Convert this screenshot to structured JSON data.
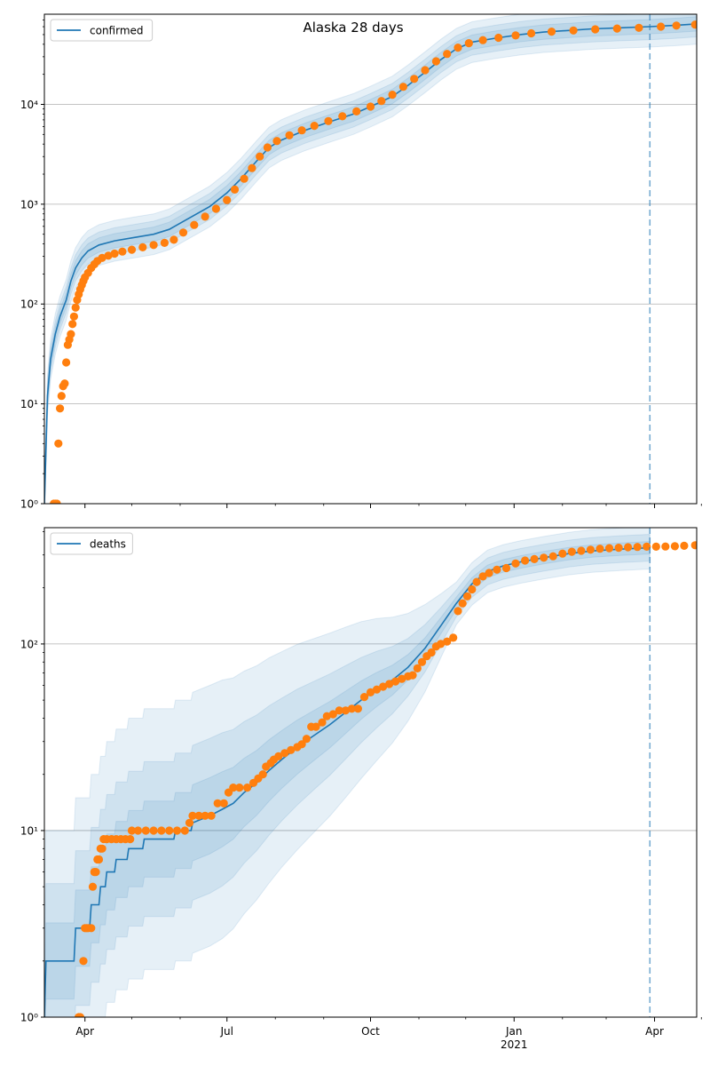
{
  "figure": {
    "title": "Alaska 28 days"
  },
  "colors": {
    "model": "#1f77b4",
    "observed": "#ff7f0e",
    "band": "#1f77b4",
    "grid": "#b0b0b0"
  },
  "x_axis": {
    "ticks": [
      {
        "date": "2020-04-01",
        "label": "Apr",
        "sublabel": ""
      },
      {
        "date": "2020-07-01",
        "label": "Jul",
        "sublabel": ""
      },
      {
        "date": "2020-10-01",
        "label": "Oct",
        "sublabel": ""
      },
      {
        "date": "2021-01-01",
        "label": "Jan",
        "sublabel": "2021"
      },
      {
        "date": "2021-04-01",
        "label": "Apr",
        "sublabel": ""
      }
    ],
    "minor_ticks": [
      "2020-05-01",
      "2020-06-01",
      "2020-08-01",
      "2020-09-01",
      "2020-11-01",
      "2020-12-01",
      "2021-02-01",
      "2021-03-01",
      "2021-05-01"
    ]
  },
  "chart_data": [
    {
      "type": "line",
      "legend": "confirmed",
      "legend_position": "upper-left",
      "yscale": "log",
      "ylim": [
        1,
        80000
      ],
      "y_ticks": [
        {
          "value": 1,
          "label": "10⁰"
        },
        {
          "value": 10,
          "label": "10¹"
        },
        {
          "value": 100,
          "label": "10²"
        },
        {
          "value": 1000,
          "label": "10³"
        },
        {
          "value": 10000,
          "label": "10⁴"
        }
      ],
      "grid": "horizontal",
      "xlim": [
        "2020-03-06",
        "2021-04-28"
      ],
      "forecast_start": "2021-03-29",
      "model": [
        [
          "2020-03-06",
          1
        ],
        [
          "2020-03-08",
          12
        ],
        [
          "2020-03-10",
          28
        ],
        [
          "2020-03-13",
          50
        ],
        [
          "2020-03-16",
          75
        ],
        [
          "2020-03-20",
          110
        ],
        [
          "2020-03-23",
          170
        ],
        [
          "2020-03-26",
          230
        ],
        [
          "2020-03-30",
          290
        ],
        [
          "2020-04-03",
          340
        ],
        [
          "2020-04-10",
          390
        ],
        [
          "2020-04-20",
          430
        ],
        [
          "2020-05-01",
          460
        ],
        [
          "2020-05-15",
          500
        ],
        [
          "2020-05-25",
          560
        ],
        [
          "2020-06-05",
          700
        ],
        [
          "2020-06-20",
          950
        ],
        [
          "2020-07-01",
          1300
        ],
        [
          "2020-07-10",
          1800
        ],
        [
          "2020-07-20",
          2700
        ],
        [
          "2020-07-28",
          3700
        ],
        [
          "2020-08-05",
          4400
        ],
        [
          "2020-08-20",
          5500
        ],
        [
          "2020-09-05",
          6700
        ],
        [
          "2020-09-20",
          8000
        ],
        [
          "2020-10-01",
          9500
        ],
        [
          "2020-10-15",
          12000
        ],
        [
          "2020-10-25",
          15500
        ],
        [
          "2020-11-05",
          21000
        ],
        [
          "2020-11-15",
          28000
        ],
        [
          "2020-11-25",
          36000
        ],
        [
          "2020-12-05",
          42000
        ],
        [
          "2020-12-20",
          46000
        ],
        [
          "2021-01-05",
          50000
        ],
        [
          "2021-01-20",
          53000
        ],
        [
          "2021-02-05",
          55000
        ],
        [
          "2021-02-20",
          57000
        ],
        [
          "2021-03-10",
          58500
        ],
        [
          "2021-03-29",
          60000
        ],
        [
          "2021-04-15",
          62000
        ],
        [
          "2021-04-28",
          64000
        ]
      ],
      "band_spread": [
        1.6,
        1.35,
        1.18
      ],
      "observed": [
        [
          "2020-03-12",
          1
        ],
        [
          "2020-03-13",
          1
        ],
        [
          "2020-03-14",
          1
        ],
        [
          "2020-03-15",
          4
        ],
        [
          "2020-03-16",
          9
        ],
        [
          "2020-03-17",
          12
        ],
        [
          "2020-03-18",
          15
        ],
        [
          "2020-03-19",
          16
        ],
        [
          "2020-03-20",
          26
        ],
        [
          "2020-03-21",
          39
        ],
        [
          "2020-03-22",
          44
        ],
        [
          "2020-03-23",
          50
        ],
        [
          "2020-03-24",
          63
        ],
        [
          "2020-03-25",
          75
        ],
        [
          "2020-03-26",
          92
        ],
        [
          "2020-03-27",
          110
        ],
        [
          "2020-03-28",
          125
        ],
        [
          "2020-03-29",
          140
        ],
        [
          "2020-03-30",
          155
        ],
        [
          "2020-03-31",
          170
        ],
        [
          "2020-04-01",
          185
        ],
        [
          "2020-04-03",
          205
        ],
        [
          "2020-04-05",
          230
        ],
        [
          "2020-04-07",
          250
        ],
        [
          "2020-04-09",
          270
        ],
        [
          "2020-04-12",
          290
        ],
        [
          "2020-04-16",
          305
        ],
        [
          "2020-04-20",
          320
        ],
        [
          "2020-04-25",
          335
        ],
        [
          "2020-05-01",
          350
        ],
        [
          "2020-05-08",
          370
        ],
        [
          "2020-05-15",
          390
        ],
        [
          "2020-05-22",
          410
        ],
        [
          "2020-05-28",
          440
        ],
        [
          "2020-06-03",
          520
        ],
        [
          "2020-06-10",
          620
        ],
        [
          "2020-06-17",
          750
        ],
        [
          "2020-06-24",
          900
        ],
        [
          "2020-07-01",
          1100
        ],
        [
          "2020-07-06",
          1400
        ],
        [
          "2020-07-12",
          1800
        ],
        [
          "2020-07-17",
          2300
        ],
        [
          "2020-07-22",
          3000
        ],
        [
          "2020-07-27",
          3700
        ],
        [
          "2020-08-02",
          4300
        ],
        [
          "2020-08-10",
          4900
        ],
        [
          "2020-08-18",
          5500
        ],
        [
          "2020-08-26",
          6100
        ],
        [
          "2020-09-04",
          6800
        ],
        [
          "2020-09-13",
          7600
        ],
        [
          "2020-09-22",
          8500
        ],
        [
          "2020-10-01",
          9500
        ],
        [
          "2020-10-08",
          10800
        ],
        [
          "2020-10-15",
          12500
        ],
        [
          "2020-10-22",
          15000
        ],
        [
          "2020-10-29",
          18000
        ],
        [
          "2020-11-05",
          22000
        ],
        [
          "2020-11-12",
          27000
        ],
        [
          "2020-11-19",
          32000
        ],
        [
          "2020-11-26",
          37000
        ],
        [
          "2020-12-03",
          41000
        ],
        [
          "2020-12-12",
          44000
        ],
        [
          "2020-12-22",
          46500
        ],
        [
          "2021-01-02",
          49000
        ],
        [
          "2021-01-12",
          51500
        ],
        [
          "2021-01-25",
          53500
        ],
        [
          "2021-02-08",
          55000
        ],
        [
          "2021-02-22",
          56500
        ],
        [
          "2021-03-08",
          57500
        ],
        [
          "2021-03-22",
          58500
        ],
        [
          "2021-04-05",
          60000
        ],
        [
          "2021-04-15",
          61500
        ],
        [
          "2021-04-27",
          63000
        ]
      ]
    },
    {
      "type": "line",
      "legend": "deaths",
      "legend_position": "upper-left",
      "yscale": "log",
      "ylim": [
        1,
        420
      ],
      "y_ticks": [
        {
          "value": 1,
          "label": "10⁰"
        },
        {
          "value": 10,
          "label": "10¹"
        },
        {
          "value": 100,
          "label": "10²"
        }
      ],
      "grid": "horizontal",
      "xlim": [
        "2020-03-06",
        "2021-04-28"
      ],
      "forecast_start": "2021-03-29",
      "model": [
        [
          "2020-03-06",
          1
        ],
        [
          "2020-03-07",
          2
        ],
        [
          "2020-03-25",
          2
        ],
        [
          "2020-03-26",
          3
        ],
        [
          "2020-04-04",
          3
        ],
        [
          "2020-04-05",
          4
        ],
        [
          "2020-04-10",
          4
        ],
        [
          "2020-04-11",
          5
        ],
        [
          "2020-04-14",
          5
        ],
        [
          "2020-04-15",
          6
        ],
        [
          "2020-04-20",
          6
        ],
        [
          "2020-04-21",
          7
        ],
        [
          "2020-04-28",
          7
        ],
        [
          "2020-04-29",
          8
        ],
        [
          "2020-05-08",
          8
        ],
        [
          "2020-05-09",
          9
        ],
        [
          "2020-05-28",
          9
        ],
        [
          "2020-05-29",
          10
        ],
        [
          "2020-06-08",
          10
        ],
        [
          "2020-06-09",
          11
        ],
        [
          "2020-06-20",
          12
        ],
        [
          "2020-06-28",
          13
        ],
        [
          "2020-07-05",
          14
        ],
        [
          "2020-07-12",
          16
        ],
        [
          "2020-07-20",
          18
        ],
        [
          "2020-07-28",
          21
        ],
        [
          "2020-08-05",
          24
        ],
        [
          "2020-08-15",
          28
        ],
        [
          "2020-08-25",
          32
        ],
        [
          "2020-09-05",
          37
        ],
        [
          "2020-09-15",
          43
        ],
        [
          "2020-09-25",
          50
        ],
        [
          "2020-10-05",
          57
        ],
        [
          "2020-10-15",
          64
        ],
        [
          "2020-10-25",
          75
        ],
        [
          "2020-11-05",
          95
        ],
        [
          "2020-11-15",
          125
        ],
        [
          "2020-11-25",
          165
        ],
        [
          "2020-12-05",
          210
        ],
        [
          "2020-12-15,",
          245
        ],
        [
          "2020-12-25",
          262
        ],
        [
          "2021-01-05",
          275
        ],
        [
          "2021-01-20",
          290
        ],
        [
          "2021-02-05",
          305
        ],
        [
          "2021-02-20",
          315
        ],
        [
          "2021-03-10",
          322
        ],
        [
          "2021-03-29",
          328
        ]
      ],
      "band_spread": [
        5.0,
        2.6,
        1.6
      ],
      "band_spread_late": [
        1.3,
        1.18,
        1.08
      ],
      "observed": [
        [
          "2020-03-28",
          1
        ],
        [
          "2020-03-29",
          1
        ],
        [
          "2020-03-31",
          2
        ],
        [
          "2020-04-01",
          3
        ],
        [
          "2020-04-02",
          3
        ],
        [
          "2020-04-03",
          3
        ],
        [
          "2020-04-05",
          3
        ],
        [
          "2020-04-06",
          5
        ],
        [
          "2020-04-07",
          6
        ],
        [
          "2020-04-08",
          6
        ],
        [
          "2020-04-09",
          7
        ],
        [
          "2020-04-10",
          7
        ],
        [
          "2020-04-11",
          8
        ],
        [
          "2020-04-12",
          8
        ],
        [
          "2020-04-13",
          9
        ],
        [
          "2020-04-15",
          9
        ],
        [
          "2020-04-18",
          9
        ],
        [
          "2020-04-21",
          9
        ],
        [
          "2020-04-24",
          9
        ],
        [
          "2020-04-27",
          9
        ],
        [
          "2020-04-30",
          9
        ],
        [
          "2020-05-01",
          10
        ],
        [
          "2020-05-05",
          10
        ],
        [
          "2020-05-10",
          10
        ],
        [
          "2020-05-15",
          10
        ],
        [
          "2020-05-20",
          10
        ],
        [
          "2020-05-25",
          10
        ],
        [
          "2020-05-30",
          10
        ],
        [
          "2020-06-04",
          10
        ],
        [
          "2020-06-07",
          11
        ],
        [
          "2020-06-09",
          12
        ],
        [
          "2020-06-13",
          12
        ],
        [
          "2020-06-17",
          12
        ],
        [
          "2020-06-21",
          12
        ],
        [
          "2020-06-25",
          14
        ],
        [
          "2020-06-29",
          14
        ],
        [
          "2020-07-02",
          16
        ],
        [
          "2020-07-05",
          17
        ],
        [
          "2020-07-09",
          17
        ],
        [
          "2020-07-14",
          17
        ],
        [
          "2020-07-18",
          18
        ],
        [
          "2020-07-21",
          19
        ],
        [
          "2020-07-24",
          20
        ],
        [
          "2020-07-26",
          22
        ],
        [
          "2020-07-29",
          23
        ],
        [
          "2020-07-31",
          24
        ],
        [
          "2020-08-03",
          25
        ],
        [
          "2020-08-07",
          26
        ],
        [
          "2020-08-11",
          27
        ],
        [
          "2020-08-15",
          28
        ],
        [
          "2020-08-18",
          29
        ],
        [
          "2020-08-21",
          31
        ],
        [
          "2020-08-24",
          36
        ],
        [
          "2020-08-27",
          36
        ],
        [
          "2020-08-31",
          38
        ],
        [
          "2020-09-03",
          41
        ],
        [
          "2020-09-07",
          42
        ],
        [
          "2020-09-11",
          44
        ],
        [
          "2020-09-15",
          44
        ],
        [
          "2020-09-19",
          45
        ],
        [
          "2020-09-23",
          45
        ],
        [
          "2020-09-27",
          52
        ],
        [
          "2020-10-01",
          55
        ],
        [
          "2020-10-05",
          57
        ],
        [
          "2020-10-09",
          59
        ],
        [
          "2020-10-13",
          61
        ],
        [
          "2020-10-17",
          63
        ],
        [
          "2020-10-21",
          65
        ],
        [
          "2020-10-25",
          67
        ],
        [
          "2020-10-28",
          68
        ],
        [
          "2020-10-31",
          74
        ],
        [
          "2020-11-03",
          80
        ],
        [
          "2020-11-06",
          86
        ],
        [
          "2020-11-09",
          90
        ],
        [
          "2020-11-12",
          97
        ],
        [
          "2020-11-15",
          100
        ],
        [
          "2020-11-19",
          103
        ],
        [
          "2020-11-23",
          108
        ],
        [
          "2020-11-26",
          150
        ],
        [
          "2020-11-29",
          165
        ],
        [
          "2020-12-02",
          180
        ],
        [
          "2020-12-05",
          196
        ],
        [
          "2020-12-08",
          215
        ],
        [
          "2020-12-12",
          230
        ],
        [
          "2020-12-16",
          240
        ],
        [
          "2020-12-21",
          250
        ],
        [
          "2020-12-27",
          255
        ],
        [
          "2021-01-02",
          270
        ],
        [
          "2021-01-08",
          280
        ],
        [
          "2021-01-14",
          285
        ],
        [
          "2021-01-20",
          290
        ],
        [
          "2021-01-26",
          295
        ],
        [
          "2021-02-01",
          305
        ],
        [
          "2021-02-07",
          312
        ],
        [
          "2021-02-13",
          316
        ],
        [
          "2021-02-19",
          320
        ],
        [
          "2021-02-25",
          324
        ],
        [
          "2021-03-03",
          326
        ],
        [
          "2021-03-09",
          328
        ],
        [
          "2021-03-15",
          330
        ],
        [
          "2021-03-21",
          331
        ],
        [
          "2021-03-27",
          332
        ],
        [
          "2021-04-02",
          332
        ],
        [
          "2021-04-08",
          333
        ],
        [
          "2021-04-14",
          334
        ],
        [
          "2021-04-20",
          336
        ],
        [
          "2021-04-27",
          338
        ]
      ]
    }
  ]
}
